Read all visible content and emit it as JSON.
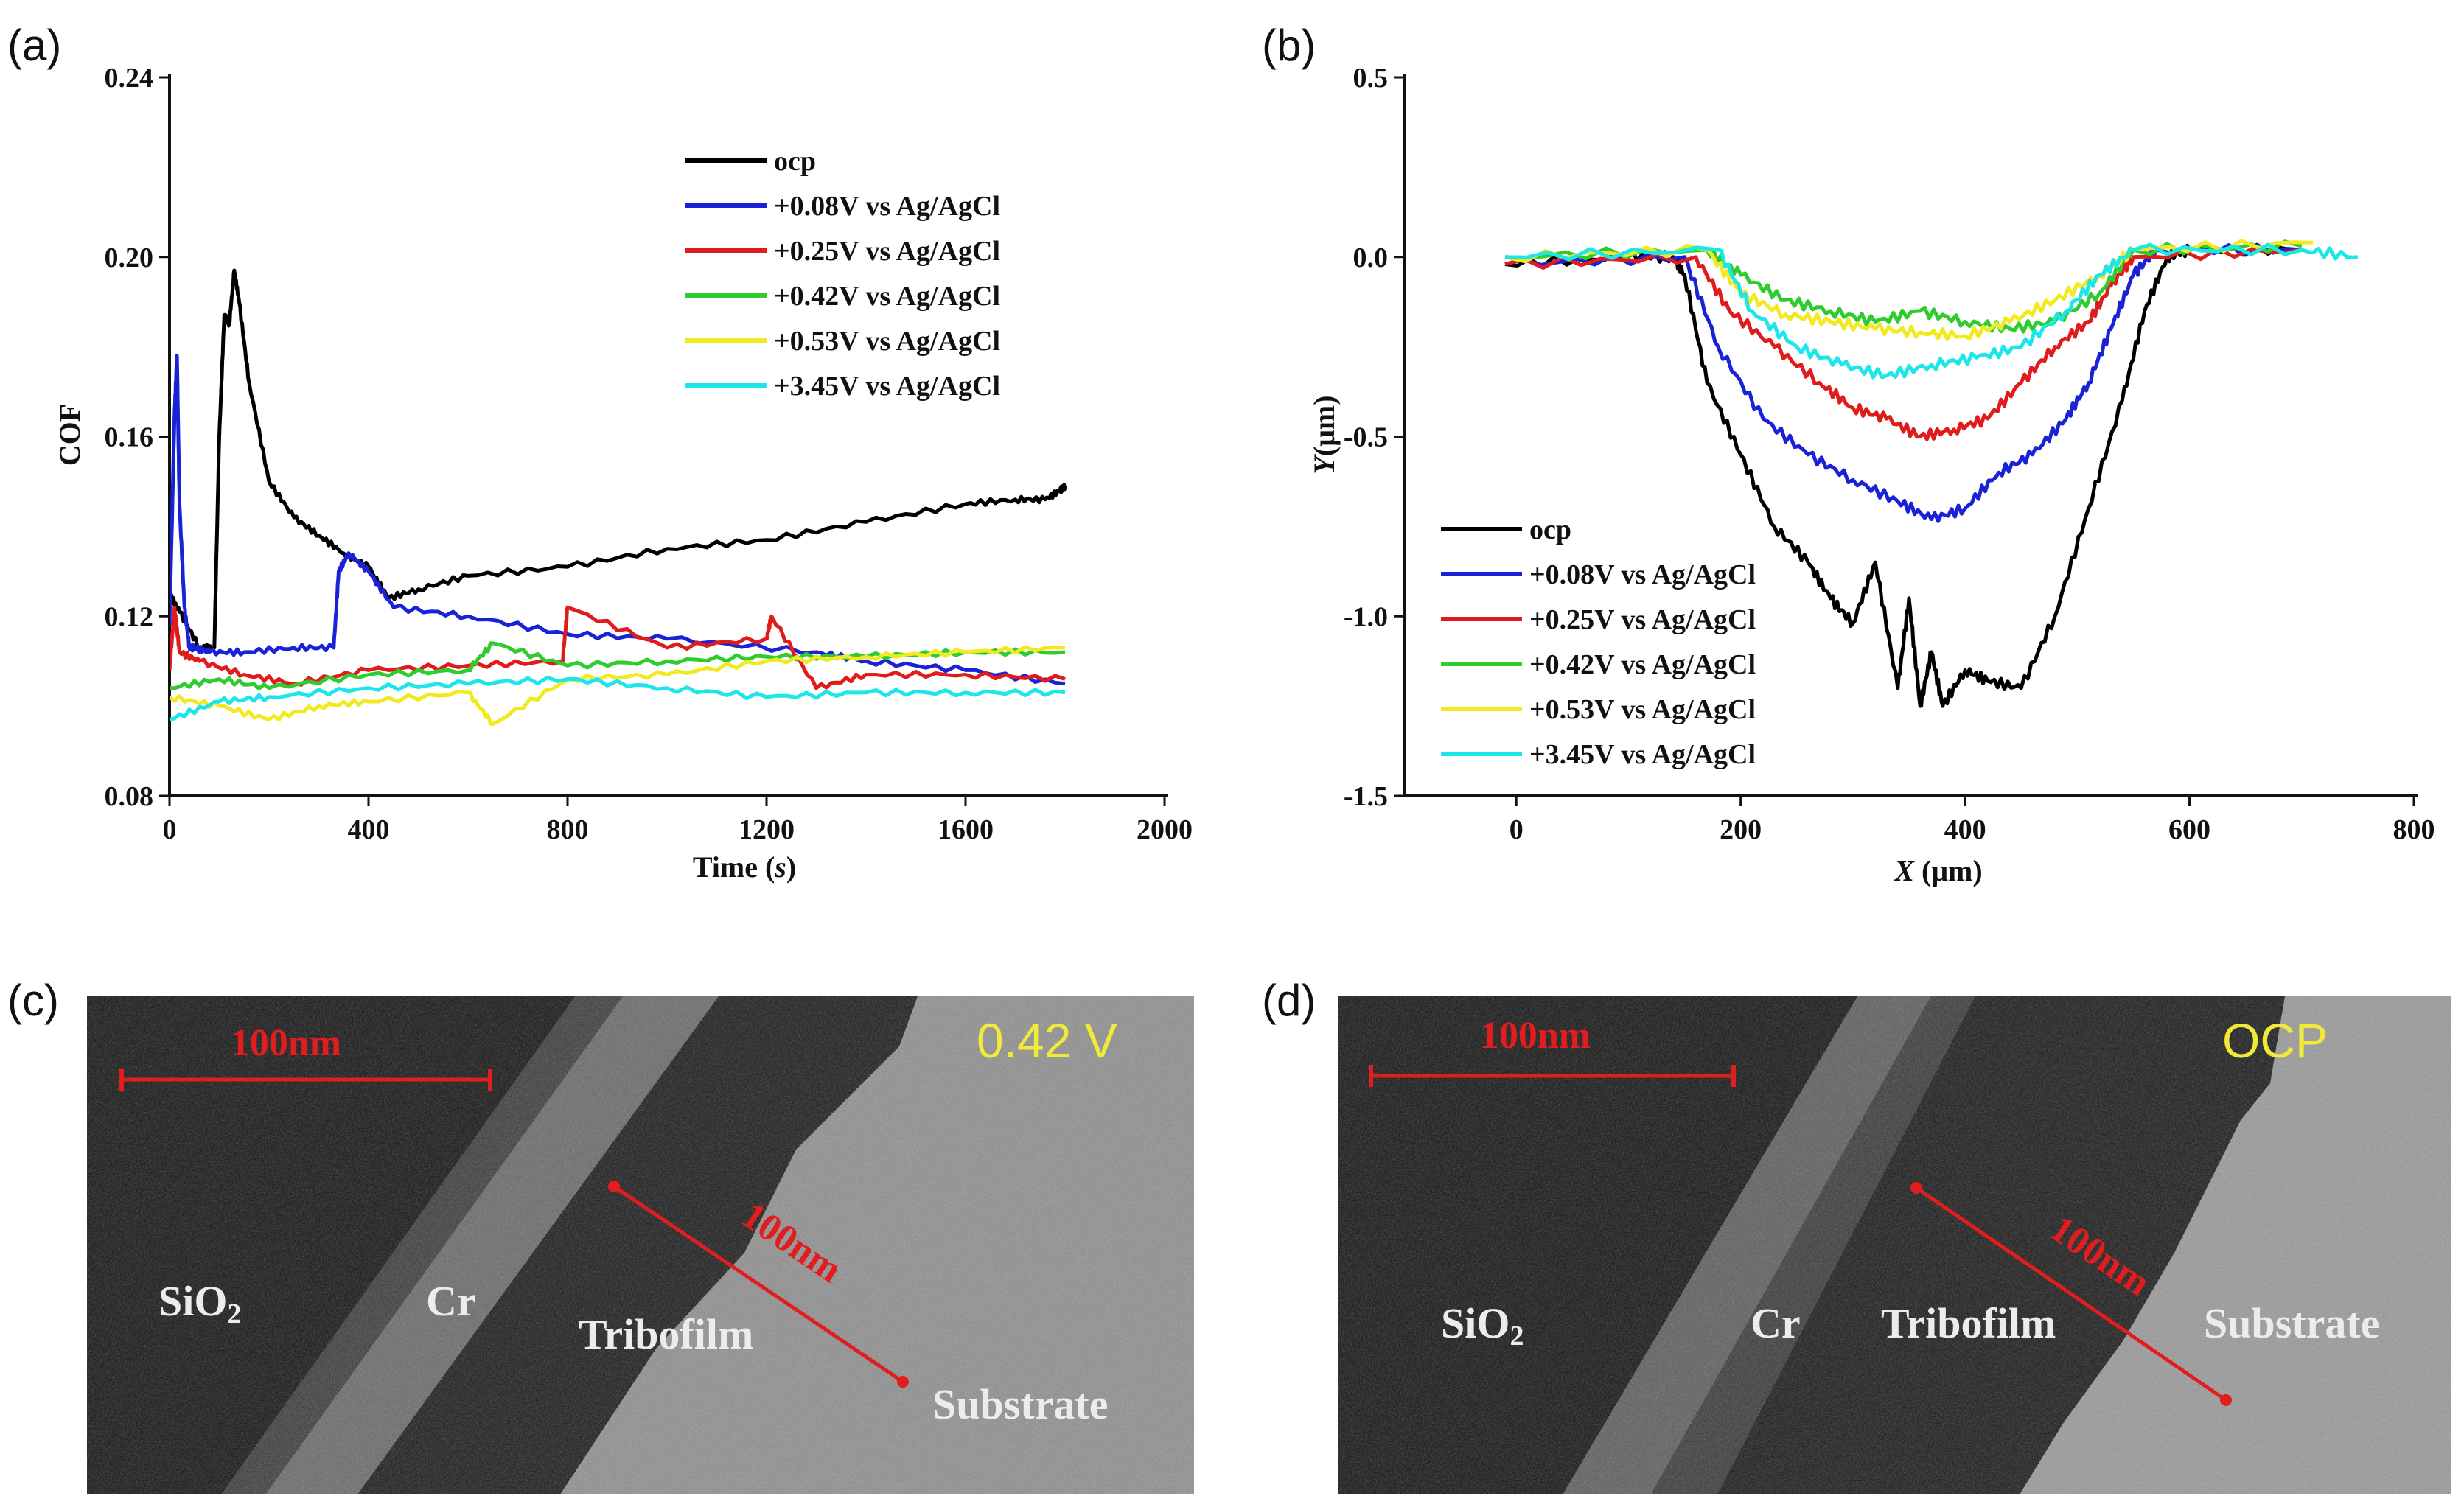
{
  "panel_labels": {
    "a": "(a)",
    "b": "(b)",
    "c": "(c)",
    "d": "(d)"
  },
  "chart_data": [
    {
      "type": "line",
      "xlabel": "Time (s)",
      "ylabel": "COF",
      "xlim": [
        0,
        2000
      ],
      "ylim": [
        0.08,
        0.24
      ],
      "xticks": [
        "0",
        "400",
        "800",
        "1200",
        "1600",
        "2000"
      ],
      "yticks": [
        "0.08",
        "0.12",
        "0.16",
        "0.20",
        "0.24"
      ],
      "grid": false,
      "legend_position": "top-right",
      "series": [
        {
          "name": "ocp",
          "color": "#000000",
          "x": [
            0,
            20,
            60,
            90,
            100,
            110,
            120,
            130,
            140,
            160,
            200,
            250,
            300,
            350,
            400,
            440,
            500,
            600,
            800,
            1000,
            1200,
            1400,
            1600,
            1700,
            1760,
            1790,
            1800
          ],
          "y": [
            0.125,
            0.121,
            0.113,
            0.113,
            0.16,
            0.187,
            0.185,
            0.197,
            0.19,
            0.172,
            0.15,
            0.142,
            0.138,
            0.134,
            0.131,
            0.124,
            0.126,
            0.129,
            0.131,
            0.135,
            0.137,
            0.141,
            0.145,
            0.146,
            0.146,
            0.148,
            0.149
          ]
        },
        {
          "name": "+0.08V vs Ag/AgCl",
          "color": "#1a22d8",
          "x": [
            0,
            10,
            15,
            20,
            30,
            40,
            50,
            80,
            150,
            250,
            330,
            340,
            360,
            400,
            450,
            600,
            800,
            1000,
            1300,
            1400,
            1600,
            1800
          ],
          "y": [
            0.118,
            0.165,
            0.178,
            0.145,
            0.122,
            0.113,
            0.113,
            0.112,
            0.112,
            0.113,
            0.113,
            0.13,
            0.134,
            0.13,
            0.122,
            0.12,
            0.116,
            0.115,
            0.112,
            0.11,
            0.108,
            0.105
          ]
        },
        {
          "name": "+0.25V vs Ag/AgCl",
          "color": "#e01b1b",
          "x": [
            0,
            10,
            20,
            60,
            150,
            250,
            400,
            600,
            790,
            800,
            1000,
            1200,
            1210,
            1300,
            1400,
            1600,
            1800
          ],
          "y": [
            0.108,
            0.122,
            0.112,
            0.11,
            0.107,
            0.105,
            0.108,
            0.109,
            0.11,
            0.122,
            0.113,
            0.115,
            0.12,
            0.104,
            0.107,
            0.107,
            0.106
          ]
        },
        {
          "name": "+0.42V vs Ag/AgCl",
          "color": "#2ecc2e",
          "x": [
            0,
            100,
            200,
            400,
            600,
            650,
            800,
            1000,
            1200,
            1400,
            1600,
            1800
          ],
          "y": [
            0.104,
            0.106,
            0.104,
            0.107,
            0.108,
            0.114,
            0.109,
            0.11,
            0.111,
            0.111,
            0.112,
            0.112
          ]
        },
        {
          "name": "+0.53V vs Ag/AgCl",
          "color": "#f2ea20",
          "x": [
            0,
            100,
            200,
            300,
            400,
            600,
            650,
            800,
            1000,
            1200,
            1400,
            1600,
            1800
          ],
          "y": [
            0.102,
            0.1,
            0.097,
            0.1,
            0.101,
            0.103,
            0.096,
            0.106,
            0.107,
            0.11,
            0.111,
            0.112,
            0.113
          ]
        },
        {
          "name": "+3.45V vs Ag/AgCl",
          "color": "#1de6ea",
          "x": [
            0,
            100,
            200,
            400,
            600,
            800,
            1000,
            1200,
            1400,
            1600,
            1800
          ],
          "y": [
            0.097,
            0.101,
            0.102,
            0.104,
            0.105,
            0.106,
            0.104,
            0.102,
            0.103,
            0.103,
            0.103
          ]
        }
      ]
    },
    {
      "type": "line",
      "xlabel": "X (μm)",
      "ylabel": "Y(μm)",
      "xlim": [
        -100,
        800
      ],
      "ylim": [
        -1.5,
        0.5
      ],
      "xticks": [
        "0",
        "200",
        "400",
        "600",
        "800"
      ],
      "yticks": [
        "0.5",
        "0.0",
        "-0.5",
        "-1.0",
        "-1.5"
      ],
      "grid": false,
      "legend_position": "bottom-left",
      "series": [
        {
          "name": "ocp",
          "color": "#000000",
          "x": [
            -10,
            100,
            140,
            150,
            170,
            200,
            230,
            260,
            280,
            300,
            320,
            340,
            350,
            360,
            370,
            380,
            400,
            420,
            450,
            480,
            510,
            540,
            560,
            580,
            600,
            700
          ],
          "y": [
            -0.02,
            0.0,
            0.0,
            -0.05,
            -0.35,
            -0.55,
            -0.75,
            -0.85,
            -0.95,
            -1.02,
            -0.85,
            -1.2,
            -0.95,
            -1.25,
            -1.1,
            -1.25,
            -1.15,
            -1.18,
            -1.2,
            -1.0,
            -0.7,
            -0.4,
            -0.15,
            0.0,
            0.02,
            0.02
          ]
        },
        {
          "name": "+0.08V vs Ag/AgCl",
          "color": "#1a22d8",
          "x": [
            -10,
            150,
            180,
            220,
            260,
            300,
            340,
            370,
            400,
            430,
            460,
            490,
            510,
            530,
            550,
            570,
            700
          ],
          "y": [
            -0.02,
            0.0,
            -0.25,
            -0.45,
            -0.55,
            -0.62,
            -0.68,
            -0.73,
            -0.7,
            -0.6,
            -0.55,
            -0.45,
            -0.35,
            -0.2,
            -0.05,
            0.02,
            0.02
          ]
        },
        {
          "name": "+0.25V vs Ag/AgCl",
          "color": "#e01b1b",
          "x": [
            -10,
            160,
            190,
            230,
            270,
            300,
            330,
            360,
            390,
            420,
            450,
            480,
            510,
            530,
            550,
            700
          ],
          "y": [
            -0.02,
            0.0,
            -0.15,
            -0.25,
            -0.35,
            -0.42,
            -0.45,
            -0.5,
            -0.48,
            -0.45,
            -0.35,
            -0.25,
            -0.18,
            -0.08,
            0.0,
            0.02
          ]
        },
        {
          "name": "+0.42V vs Ag/AgCl",
          "color": "#2ecc2e",
          "x": [
            -10,
            170,
            200,
            240,
            280,
            320,
            360,
            400,
            440,
            480,
            520,
            550,
            700
          ],
          "y": [
            0.0,
            0.02,
            -0.05,
            -0.12,
            -0.15,
            -0.18,
            -0.15,
            -0.18,
            -0.2,
            -0.18,
            -0.1,
            0.02,
            0.03
          ]
        },
        {
          "name": "+0.53V vs Ag/AgCl",
          "color": "#f2ea20",
          "x": [
            -10,
            170,
            200,
            240,
            280,
            320,
            360,
            400,
            440,
            480,
            520,
            550,
            710
          ],
          "y": [
            0.0,
            0.02,
            -0.1,
            -0.16,
            -0.18,
            -0.2,
            -0.21,
            -0.22,
            -0.18,
            -0.12,
            -0.05,
            0.02,
            0.04
          ]
        },
        {
          "name": "+3.45V vs Ag/AgCl",
          "color": "#1de6ea",
          "x": [
            -10,
            180,
            210,
            250,
            290,
            330,
            370,
            410,
            450,
            490,
            520,
            550,
            700,
            750
          ],
          "y": [
            0.0,
            0.02,
            -0.15,
            -0.25,
            -0.3,
            -0.33,
            -0.3,
            -0.28,
            -0.25,
            -0.15,
            -0.05,
            0.02,
            0.02,
            0.0
          ]
        }
      ]
    }
  ],
  "tem": {
    "c": {
      "scale_top": "100nm",
      "scale_diag": "100nm",
      "voltage": "0.42 V",
      "sio2": "SiO",
      "sub2": "2",
      "cr": "Cr",
      "tribofilm": "Tribofilm",
      "substrate": "Substrate"
    },
    "d": {
      "scale_top": "100nm",
      "scale_diag": "100nm",
      "voltage": "OCP",
      "sio2": "SiO",
      "sub2": "2",
      "cr": "Cr",
      "tribofilm": "Tribofilm",
      "substrate": "Substrate"
    }
  }
}
